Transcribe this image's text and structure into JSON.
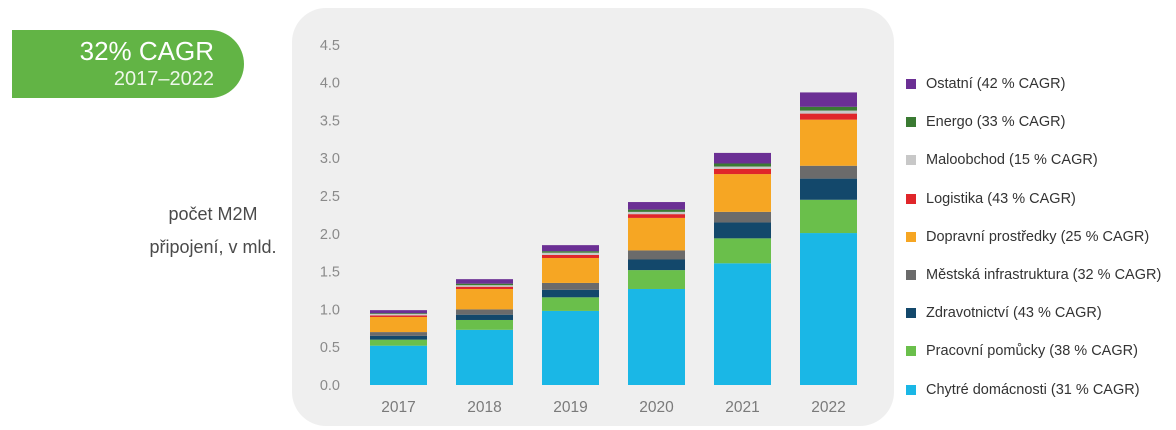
{
  "badge": {
    "cagr": "32% CAGR",
    "period": "2017–2022"
  },
  "ylabel_lines": [
    "počet M2M",
    "připojení, v mld."
  ],
  "chart_data": {
    "type": "bar",
    "stacked": true,
    "categories": [
      "2017",
      "2018",
      "2019",
      "2020",
      "2021",
      "2022"
    ],
    "ylabel": "počet M2M připojení, v mld.",
    "ylim": [
      0,
      4.5
    ],
    "yticks": [
      "0.0",
      "0.5",
      "1.0",
      "1.5",
      "2.0",
      "2.5",
      "3.0",
      "3.5",
      "4.0",
      "4.5"
    ],
    "series": [
      {
        "name": "Chytré domácnosti (31 % CAGR)",
        "color": "#1ab7e6",
        "values": [
          0.52,
          0.73,
          0.98,
          1.27,
          1.61,
          2.01
        ]
      },
      {
        "name": "Pracovní pomůcky (38 % CAGR)",
        "color": "#6abf4b",
        "values": [
          0.08,
          0.13,
          0.18,
          0.25,
          0.33,
          0.44
        ]
      },
      {
        "name": "Zdravotnictví (43 % CAGR)",
        "color": "#13486b",
        "values": [
          0.05,
          0.07,
          0.1,
          0.14,
          0.21,
          0.28
        ]
      },
      {
        "name": "Městská infrastruktura (32 % CAGR)",
        "color": "#6b6b6b",
        "values": [
          0.05,
          0.07,
          0.09,
          0.12,
          0.14,
          0.17
        ]
      },
      {
        "name": "Dopravní prostředky (25 % CAGR)",
        "color": "#f6a623",
        "values": [
          0.2,
          0.27,
          0.33,
          0.43,
          0.5,
          0.61
        ]
      },
      {
        "name": "Logistika (43 % CAGR)",
        "color": "#e0262a",
        "values": [
          0.02,
          0.03,
          0.04,
          0.05,
          0.07,
          0.08
        ]
      },
      {
        "name": "Maloobchod (15 % CAGR)",
        "color": "#c8c8c8",
        "values": [
          0.02,
          0.02,
          0.03,
          0.03,
          0.03,
          0.04
        ]
      },
      {
        "name": "Energo (33 % CAGR)",
        "color": "#3a7a32",
        "values": [
          0.01,
          0.02,
          0.02,
          0.03,
          0.04,
          0.05
        ]
      },
      {
        "name": "Ostatní (42 % CAGR)",
        "color": "#6b2f94",
        "values": [
          0.04,
          0.06,
          0.08,
          0.1,
          0.14,
          0.19
        ]
      }
    ],
    "legend_position": "right",
    "grid": false
  }
}
